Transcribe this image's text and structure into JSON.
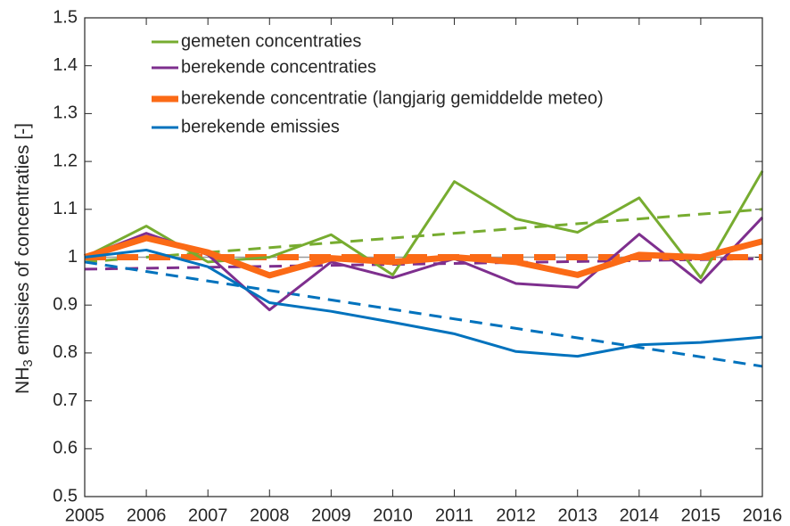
{
  "chart_data": {
    "type": "line",
    "ylabel_parts": [
      "NH",
      "3",
      "emissies of concentraties [-]"
    ],
    "x": [
      2005,
      2006,
      2007,
      2008,
      2009,
      2010,
      2011,
      2012,
      2013,
      2014,
      2015,
      2016
    ],
    "xlim": [
      2005,
      2016
    ],
    "xticks": [
      2005,
      2006,
      2007,
      2008,
      2009,
      2010,
      2011,
      2012,
      2013,
      2014,
      2015,
      2016
    ],
    "ylim": [
      0.5,
      1.5
    ],
    "yticks": [
      0.5,
      0.6,
      0.7,
      0.8,
      0.9,
      1,
      1.1,
      1.2,
      1.3,
      1.4,
      1.5
    ],
    "reference_line": 1,
    "legend": "upper left",
    "series": [
      {
        "name": "gemeten concentraties",
        "color": "#77ac30",
        "linewidth": 3,
        "values": [
          1.0,
          1.065,
          0.99,
          1.0,
          1.047,
          0.963,
          1.158,
          1.08,
          1.052,
          1.124,
          0.957,
          1.18
        ]
      },
      {
        "name": "berekende concentraties",
        "color": "#7e2f8e",
        "linewidth": 3,
        "values": [
          1.0,
          1.05,
          1.005,
          0.89,
          0.99,
          0.957,
          0.997,
          0.945,
          0.937,
          1.048,
          0.947,
          1.083
        ]
      },
      {
        "name": "berekende concentratie (langjarig gemiddelde meteo)",
        "color": "#fb6a16",
        "linewidth": 7,
        "values": [
          1.0,
          1.04,
          1.01,
          0.962,
          0.998,
          0.99,
          1.0,
          0.99,
          0.963,
          1.005,
          1.0,
          1.033
        ]
      },
      {
        "name": "berekende emissies",
        "color": "#0072bd",
        "linewidth": 3,
        "values": [
          1.0,
          1.015,
          0.98,
          0.905,
          0.887,
          0.864,
          0.84,
          0.803,
          0.793,
          0.817,
          0.822,
          0.833
        ]
      }
    ],
    "trend_lines": [
      {
        "color": "#77ac30",
        "linewidth": 3,
        "dashed": true,
        "x": [
          2005,
          2016
        ],
        "values": [
          0.99,
          1.1
        ]
      },
      {
        "color": "#7e2f8e",
        "linewidth": 3,
        "dashed": true,
        "x": [
          2005,
          2016
        ],
        "values": [
          0.975,
          0.997
        ]
      },
      {
        "color": "#fb6a16",
        "linewidth": 7,
        "dashed": true,
        "x": [
          2005,
          2016
        ],
        "values": [
          1.0,
          1.0
        ]
      },
      {
        "color": "#0072bd",
        "linewidth": 3,
        "dashed": true,
        "x": [
          2005,
          2016
        ],
        "values": [
          0.99,
          0.772
        ]
      }
    ]
  }
}
